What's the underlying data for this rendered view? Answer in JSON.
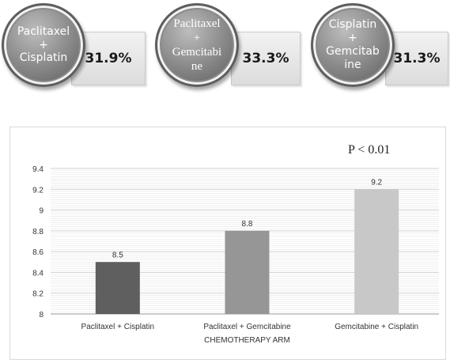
{
  "arms": [
    {
      "label": "Paclitaxel\n+\nCisplatin",
      "percent": "31.9%"
    },
    {
      "label": "Paclitaxel\n+\nGemcitabi\nne",
      "percent": "33.3%"
    },
    {
      "label": "Cisplatin\n+\nGemcitab\nine",
      "percent": "31.3%"
    }
  ],
  "chart_data": {
    "type": "bar",
    "categories": [
      "Paclitaxel + Cisplatin",
      "Paclitaxel + Gemcitabine",
      "Gemcitabine + Cisplatin"
    ],
    "values": [
      8.5,
      8.8,
      9.2
    ],
    "value_labels": [
      "8.5",
      "8.8",
      "9.2"
    ],
    "colors": [
      "#5f5f5f",
      "#969696",
      "#c8c8c8"
    ],
    "xlabel": "CHEMOTHERAPY ARM",
    "ylabel": "",
    "ylim": [
      8,
      9.4
    ],
    "yticks": [
      "8",
      "8.2",
      "8.4",
      "8.6",
      "8.8",
      "9",
      "9.2",
      "9.4"
    ],
    "grid": true,
    "annotation": "P < 0.01"
  }
}
